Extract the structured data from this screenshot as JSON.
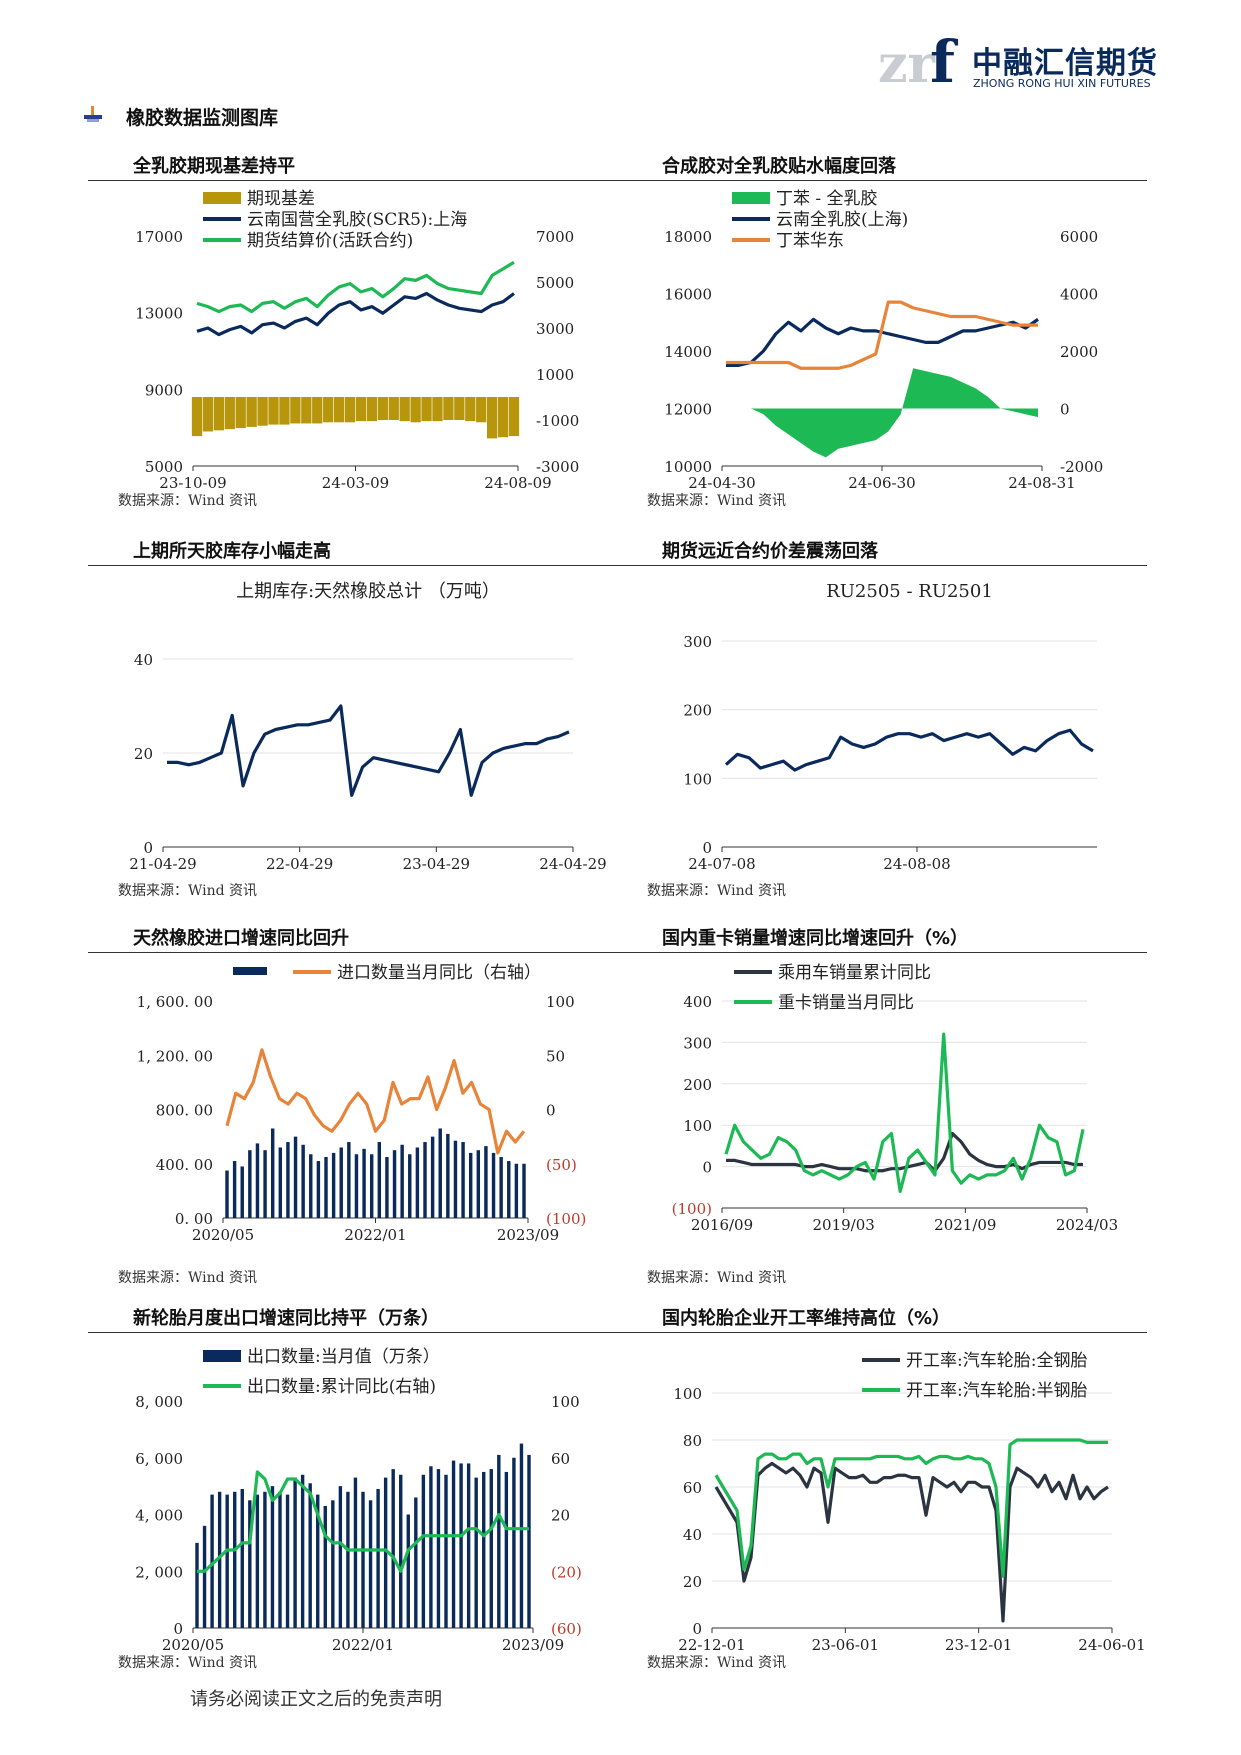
{
  "header": {
    "logo_mark": "znf",
    "company_cn": "中融汇信期货",
    "company_en": "ZHONG RONG HUI XIN FUTURES"
  },
  "section_title": "橡胶数据监测图库",
  "footer": "请务必阅读正文之后的免责声明",
  "charts": [
    {
      "title": "全乳胶期现基差持平",
      "source": "数据来源：Wind 资讯",
      "chart_data": {
        "type": "line",
        "legend_position": "top-left",
        "series": [
          {
            "name": "期现基差",
            "kind": "bar",
            "axis": "right",
            "color": "#b8960c",
            "values": [
              -1700,
              -1500,
              -1450,
              -1400,
              -1350,
              -1300,
              -1250,
              -1200,
              -1200,
              -1150,
              -1150,
              -1150,
              -1100,
              -1100,
              -1100,
              -1050,
              -1050,
              -1000,
              -1000,
              -1050,
              -1100,
              -1050,
              -1050,
              -1000,
              -1000,
              -1050,
              -1100,
              -1800,
              -1750,
              -1700
            ]
          },
          {
            "name": "云南国营全乳胶(SCR5):上海",
            "axis": "left",
            "color": "#0b2a5c",
            "values": [
              13200,
              13400,
              13000,
              13300,
              13500,
              13100,
              13600,
              13700,
              13400,
              13800,
              14000,
              13600,
              14300,
              14800,
              15000,
              14500,
              14700,
              14300,
              14800,
              15300,
              15200,
              15500,
              15100,
              14800,
              14600,
              14500,
              14400,
              14800,
              15000,
              15500
            ]
          },
          {
            "name": "期货结算价(活跃合约)",
            "axis": "left",
            "color": "#1db954",
            "values": [
              14900,
              14700,
              14400,
              14700,
              14800,
              14400,
              14900,
              15000,
              14600,
              15000,
              15200,
              14700,
              15400,
              15900,
              16100,
              15600,
              15800,
              15300,
              15800,
              16400,
              16300,
              16600,
              16100,
              15800,
              15700,
              15600,
              15500,
              16600,
              17000,
              17400
            ]
          }
        ],
        "x_ticks": [
          "23-10-09",
          "24-03-09",
          "24-08-09"
        ],
        "y_left": {
          "min": 5000,
          "max": 19000,
          "ticks": [
            "5000",
            "9000",
            "13000",
            "17000"
          ]
        },
        "y_right": {
          "min": -3000,
          "max": 7000,
          "ticks": [
            "-3000",
            "-1000",
            "1000",
            "3000",
            "5000",
            "7000"
          ]
        }
      }
    },
    {
      "title": "合成胶对全乳胶贴水幅度回落",
      "source": "数据来源：Wind 资讯",
      "chart_data": {
        "type": "line",
        "legend_position": "top-left",
        "series": [
          {
            "name": "丁苯 - 全乳胶",
            "kind": "area",
            "axis": "right",
            "color": "#1db954",
            "values": [
              0,
              0,
              0,
              -200,
              -600,
              -900,
              -1200,
              -1500,
              -1700,
              -1400,
              -1300,
              -1200,
              -1100,
              -800,
              -200,
              1400,
              1300,
              1200,
              1100,
              900,
              700,
              400,
              0,
              -100,
              -200,
              -300
            ]
          },
          {
            "name": "云南全乳胶(上海)",
            "axis": "left",
            "color": "#0b2a5c",
            "values": [
              13500,
              13500,
              13600,
              14000,
              14600,
              15000,
              14700,
              15100,
              14800,
              14600,
              14800,
              14700,
              14700,
              14600,
              14500,
              14400,
              14300,
              14300,
              14500,
              14700,
              14700,
              14800,
              14900,
              15000,
              14800,
              15100
            ]
          },
          {
            "name": "丁苯华东",
            "axis": "left",
            "color": "#e8833a",
            "values": [
              13600,
              13600,
              13600,
              13600,
              13600,
              13600,
              13400,
              13400,
              13400,
              13400,
              13500,
              13700,
              13900,
              15700,
              15700,
              15500,
              15400,
              15300,
              15200,
              15200,
              15200,
              15100,
              15000,
              14900,
              14900,
              14900
            ]
          }
        ],
        "x_ticks": [
          "24-04-30",
          "24-06-30",
          "24-08-31"
        ],
        "y_left": {
          "min": 10000,
          "max": 18000,
          "ticks": [
            "10000",
            "12000",
            "14000",
            "16000",
            "18000"
          ]
        },
        "y_right": {
          "min": -2000,
          "max": 6000,
          "ticks": [
            "-2000",
            "0",
            "2000",
            "4000",
            "6000"
          ]
        }
      }
    },
    {
      "title": "上期所天胶库存小幅走高",
      "source": "数据来源：Wind 资讯",
      "chart_data": {
        "type": "line",
        "title": "上期库存:天然橡胶总计 （万吨）",
        "series": [
          {
            "name": "",
            "color": "#0b2a5c",
            "values": [
              18,
              18,
              17.5,
              18,
              19,
              20,
              28,
              13,
              20,
              24,
              25,
              25.5,
              26,
              26,
              26.5,
              27,
              30,
              11,
              17,
              19,
              18.5,
              18,
              17.5,
              17,
              16.5,
              16,
              20,
              25,
              11,
              18,
              20,
              21,
              21.5,
              22,
              22,
              23,
              23.5,
              24.5
            ]
          }
        ],
        "x_ticks": [
          "21-04-29",
          "22-04-29",
          "23-04-29",
          "24-04-29"
        ],
        "y_left": {
          "min": 0,
          "max": 40,
          "ticks": [
            "0",
            "20",
            "40"
          ]
        }
      }
    },
    {
      "title": "期货远近合约价差震荡回落",
      "source": "数据来源：Wind 资讯",
      "chart_data": {
        "type": "line",
        "title": "RU2505 - RU2501",
        "series": [
          {
            "name": "",
            "color": "#0b2a5c",
            "values": [
              120,
              135,
              130,
              115,
              120,
              125,
              112,
              120,
              125,
              130,
              160,
              150,
              145,
              150,
              160,
              165,
              165,
              160,
              165,
              155,
              160,
              165,
              160,
              165,
              150,
              135,
              145,
              140,
              155,
              165,
              170,
              150,
              140
            ]
          }
        ],
        "x_ticks": [
          "24-07-08",
          "24-08-08"
        ],
        "y_left": {
          "min": 0,
          "max": 300,
          "ticks": [
            "0",
            "100",
            "200",
            "300"
          ]
        }
      }
    },
    {
      "title": "天然橡胶进口增速同比回升",
      "source": "数据来源：Wind 资讯",
      "chart_data": {
        "type": "bar",
        "series": [
          {
            "name": "",
            "kind": "bar",
            "axis": "left",
            "color": "#0b2a5c",
            "values": [
              350,
              420,
              380,
              500,
              550,
              500,
              660,
              520,
              560,
              600,
              540,
              470,
              420,
              450,
              480,
              520,
              560,
              470,
              510,
              470,
              560,
              450,
              500,
              540,
              470,
              520,
              560,
              600,
              660,
              620,
              570,
              560,
              480,
              500,
              530,
              480,
              450,
              420,
              400,
              400
            ]
          },
          {
            "name": "进口数量当月同比（右轴）",
            "axis": "right",
            "color": "#e8833a",
            "values": [
              -15,
              15,
              10,
              25,
              55,
              30,
              10,
              5,
              15,
              10,
              -5,
              -15,
              -20,
              -10,
              5,
              15,
              5,
              -20,
              -10,
              25,
              5,
              10,
              10,
              30,
              0,
              20,
              45,
              15,
              25,
              5,
              0,
              -40,
              -20,
              -30,
              -20
            ]
          }
        ],
        "x_ticks": [
          "2020/05",
          "2022/01",
          "2023/09"
        ],
        "y_left": {
          "min": 0,
          "max": 1600,
          "ticks": [
            "0. 00",
            "400. 00",
            "800. 00",
            "1, 200. 00",
            "1, 600. 00"
          ]
        },
        "y_right": {
          "min": -100,
          "max": 100,
          "ticks": [
            "(100)",
            "(50)",
            "0",
            "50",
            "100"
          ]
        }
      }
    },
    {
      "title": "国内重卡销量增速同比增速回升（%）",
      "source": "数据来源：Wind 资讯",
      "chart_data": {
        "type": "line",
        "legend_position": "top-left",
        "series": [
          {
            "name": "乘用车销量累计同比",
            "color": "#2b3440",
            "values": [
              15,
              15,
              10,
              5,
              5,
              5,
              5,
              5,
              5,
              0,
              0,
              5,
              0,
              -5,
              -5,
              -5,
              -10,
              -10,
              -10,
              -5,
              -5,
              0,
              5,
              10,
              -10,
              20,
              80,
              60,
              30,
              15,
              5,
              0,
              0,
              5,
              -5,
              5,
              10,
              10,
              10,
              10,
              5,
              5
            ]
          },
          {
            "name": "重卡销量当月同比",
            "color": "#1db954",
            "values": [
              30,
              100,
              60,
              40,
              20,
              30,
              70,
              60,
              40,
              -10,
              -20,
              -10,
              -20,
              -30,
              -20,
              0,
              10,
              -30,
              60,
              80,
              -60,
              20,
              40,
              10,
              -20,
              320,
              -10,
              -40,
              -20,
              -30,
              -20,
              -20,
              -10,
              20,
              -30,
              20,
              100,
              70,
              60,
              -20,
              -10,
              90
            ]
          }
        ],
        "x_ticks": [
          "2016/09",
          "2019/03",
          "2021/09",
          "2024/03"
        ],
        "y_left": {
          "min": -100,
          "max": 400,
          "ticks": [
            "(100)",
            "0",
            "100",
            "200",
            "300",
            "400"
          ]
        }
      }
    },
    {
      "title": "新轮胎月度出口增速同比持平（万条）",
      "source": "数据来源：Wind 资讯",
      "chart_data": {
        "type": "bar",
        "series": [
          {
            "name": "出口数量:当月值（万条）",
            "kind": "bar",
            "axis": "left",
            "color": "#0b2a5c",
            "values": [
              3000,
              3600,
              4700,
              4800,
              4700,
              4800,
              4900,
              4500,
              4700,
              4800,
              5000,
              4800,
              4700,
              5300,
              5400,
              5100,
              4700,
              4300,
              4500,
              5000,
              4800,
              5300,
              4800,
              4500,
              4900,
              5300,
              5600,
              5400,
              4000,
              4600,
              5400,
              5700,
              5600,
              5400,
              5900,
              5800,
              5800,
              5300,
              5500,
              5600,
              6100,
              5500,
              6000,
              6500,
              6100
            ]
          },
          {
            "name": "出口数量:累计同比(右轴)",
            "axis": "right",
            "color": "#1db954",
            "values": [
              -20,
              -20,
              -15,
              -10,
              -5,
              -5,
              0,
              0,
              50,
              45,
              30,
              35,
              45,
              45,
              40,
              35,
              20,
              5,
              0,
              0,
              -5,
              -5,
              -5,
              -5,
              -5,
              -5,
              -10,
              -20,
              -5,
              0,
              5,
              5,
              5,
              5,
              5,
              5,
              10,
              10,
              5,
              10,
              20,
              10,
              10,
              10,
              10
            ]
          }
        ],
        "x_ticks": [
          "2020/05",
          "2022/01",
          "2023/09"
        ],
        "y_left": {
          "min": 0,
          "max": 8000,
          "ticks": [
            "0",
            "2, 000",
            "4, 000",
            "6, 000",
            "8, 000"
          ]
        },
        "y_right": {
          "min": -60,
          "max": 100,
          "ticks": [
            "(60)",
            "(20)",
            "20",
            "60",
            "100"
          ]
        }
      }
    },
    {
      "title": "国内轮胎企业开工率维持高位（%）",
      "source": "数据来源：Wind 资讯",
      "chart_data": {
        "type": "line",
        "legend_position": "top-right",
        "series": [
          {
            "name": "开工率:汽车轮胎:全钢胎",
            "color": "#2b3440",
            "values": [
              60,
              55,
              50,
              45,
              20,
              30,
              65,
              68,
              70,
              68,
              66,
              68,
              65,
              60,
              68,
              66,
              45,
              68,
              66,
              64,
              64,
              65,
              62,
              62,
              64,
              64,
              65,
              65,
              64,
              64,
              48,
              64,
              62,
              60,
              62,
              58,
              62,
              62,
              60,
              60,
              50,
              3,
              60,
              68,
              66,
              64,
              60,
              65,
              58,
              62,
              55,
              65,
              55,
              60,
              55,
              58,
              60
            ]
          },
          {
            "name": "开工率:汽车轮胎:半钢胎",
            "color": "#1db954",
            "values": [
              65,
              60,
              55,
              50,
              25,
              35,
              72,
              74,
              74,
              72,
              72,
              74,
              74,
              70,
              72,
              72,
              60,
              72,
              72,
              72,
              72,
              72,
              72,
              73,
              73,
              73,
              73,
              72,
              72,
              73,
              70,
              72,
              73,
              73,
              72,
              72,
              73,
              72,
              72,
              70,
              60,
              22,
              78,
              80,
              80,
              80,
              80,
              80,
              80,
              80,
              80,
              80,
              80,
              79,
              79,
              79,
              79
            ]
          }
        ],
        "x_ticks": [
          "22-12-01",
          "23-06-01",
          "23-12-01",
          "24-06-01"
        ],
        "y_left": {
          "min": 0,
          "max": 100,
          "ticks": [
            "0",
            "20",
            "40",
            "60",
            "80",
            "100"
          ]
        }
      }
    }
  ]
}
